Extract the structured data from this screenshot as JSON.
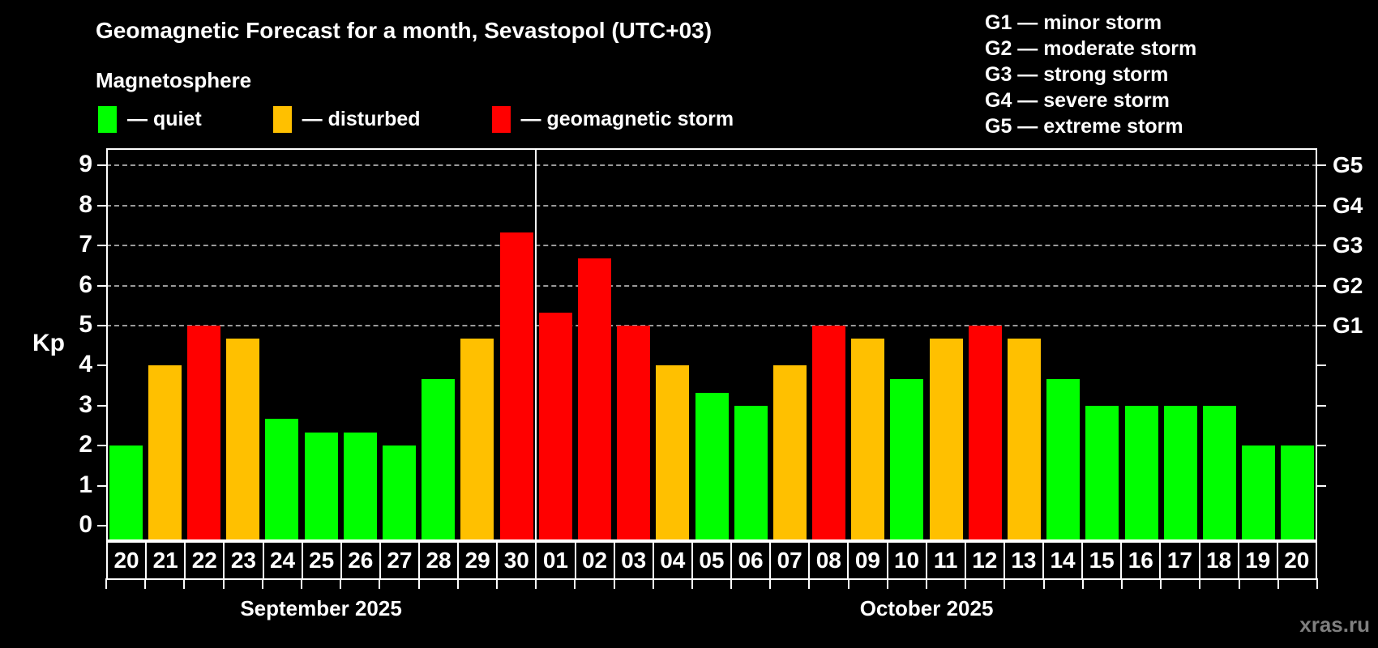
{
  "title": "Geomagnetic Forecast for a month, Sevastopol (UTC+03)",
  "subtitle": "Magnetosphere",
  "legend": {
    "items": [
      {
        "key": "quiet",
        "label": "— quiet",
        "color": "#00ff00"
      },
      {
        "key": "disturbed",
        "label": "— disturbed",
        "color": "#ffc000"
      },
      {
        "key": "storm",
        "label": "— geomagnetic storm",
        "color": "#ff0000"
      }
    ]
  },
  "storm_scale_legend": [
    "G1 — minor storm",
    "G2 — moderate storm",
    "G3 — strong storm",
    "G4 — severe storm",
    "G5 — extreme storm"
  ],
  "watermark": "xras.ru",
  "chart_data": {
    "type": "bar",
    "title": "Geomagnetic Forecast for a month, Sevastopol (UTC+03)",
    "ylabel": "Kp",
    "ylim": [
      0,
      9
    ],
    "yticks": [
      0,
      1,
      2,
      3,
      4,
      5,
      6,
      7,
      8,
      9
    ],
    "grid": "dashed horizontal lines at Kp 5-9 only",
    "grid_kp": [
      5,
      6,
      7,
      8,
      9
    ],
    "right_axis_labels": [
      {
        "kp": 5,
        "label": "G1"
      },
      {
        "kp": 6,
        "label": "G2"
      },
      {
        "kp": 7,
        "label": "G3"
      },
      {
        "kp": 8,
        "label": "G4"
      },
      {
        "kp": 9,
        "label": "G5"
      }
    ],
    "months": [
      {
        "label": "September 2025",
        "days": 11
      },
      {
        "label": "October 2025",
        "days": 20
      }
    ],
    "bars": [
      {
        "month": "September 2025",
        "date": "20",
        "kp": 2.0,
        "status": "quiet"
      },
      {
        "month": "September 2025",
        "date": "21",
        "kp": 4.0,
        "status": "disturbed"
      },
      {
        "month": "September 2025",
        "date": "22",
        "kp": 5.0,
        "status": "storm"
      },
      {
        "month": "September 2025",
        "date": "23",
        "kp": 4.67,
        "status": "disturbed"
      },
      {
        "month": "September 2025",
        "date": "24",
        "kp": 2.67,
        "status": "quiet"
      },
      {
        "month": "September 2025",
        "date": "25",
        "kp": 2.33,
        "status": "quiet"
      },
      {
        "month": "September 2025",
        "date": "26",
        "kp": 2.33,
        "status": "quiet"
      },
      {
        "month": "September 2025",
        "date": "27",
        "kp": 2.0,
        "status": "quiet"
      },
      {
        "month": "September 2025",
        "date": "28",
        "kp": 3.67,
        "status": "quiet"
      },
      {
        "month": "September 2025",
        "date": "29",
        "kp": 4.67,
        "status": "disturbed"
      },
      {
        "month": "September 2025",
        "date": "30",
        "kp": 7.33,
        "status": "storm"
      },
      {
        "month": "October 2025",
        "date": "01",
        "kp": 5.33,
        "status": "storm"
      },
      {
        "month": "October 2025",
        "date": "02",
        "kp": 6.67,
        "status": "storm"
      },
      {
        "month": "October 2025",
        "date": "03",
        "kp": 5.0,
        "status": "storm"
      },
      {
        "month": "October 2025",
        "date": "04",
        "kp": 4.0,
        "status": "disturbed"
      },
      {
        "month": "October 2025",
        "date": "05",
        "kp": 3.33,
        "status": "quiet"
      },
      {
        "month": "October 2025",
        "date": "06",
        "kp": 3.0,
        "status": "quiet"
      },
      {
        "month": "October 2025",
        "date": "07",
        "kp": 4.0,
        "status": "disturbed"
      },
      {
        "month": "October 2025",
        "date": "08",
        "kp": 5.0,
        "status": "storm"
      },
      {
        "month": "October 2025",
        "date": "09",
        "kp": 4.67,
        "status": "disturbed"
      },
      {
        "month": "October 2025",
        "date": "10",
        "kp": 3.67,
        "status": "quiet"
      },
      {
        "month": "October 2025",
        "date": "11",
        "kp": 4.67,
        "status": "disturbed"
      },
      {
        "month": "October 2025",
        "date": "12",
        "kp": 5.0,
        "status": "storm"
      },
      {
        "month": "October 2025",
        "date": "13",
        "kp": 4.67,
        "status": "disturbed"
      },
      {
        "month": "October 2025",
        "date": "14",
        "kp": 3.67,
        "status": "quiet"
      },
      {
        "month": "October 2025",
        "date": "15",
        "kp": 3.0,
        "status": "quiet"
      },
      {
        "month": "October 2025",
        "date": "16",
        "kp": 3.0,
        "status": "quiet"
      },
      {
        "month": "October 2025",
        "date": "17",
        "kp": 3.0,
        "status": "quiet"
      },
      {
        "month": "October 2025",
        "date": "18",
        "kp": 3.0,
        "status": "quiet"
      },
      {
        "month": "October 2025",
        "date": "19",
        "kp": 2.0,
        "status": "quiet"
      },
      {
        "month": "October 2025",
        "date": "20",
        "kp": 2.0,
        "status": "quiet"
      }
    ]
  }
}
